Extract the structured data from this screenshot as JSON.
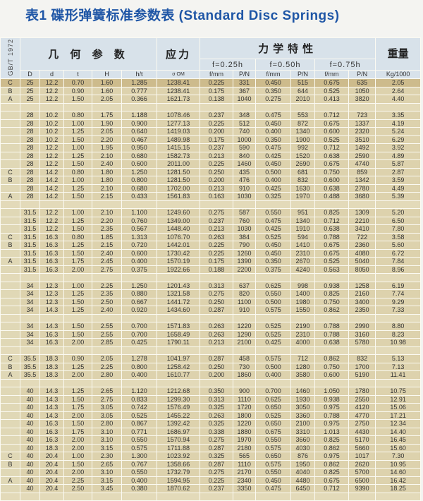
{
  "title": "表1  碟形弹簧标准参数表 (Standard Disc Springs)",
  "header": {
    "standard": "GB/T 1972",
    "geometry": "几 何 参 数",
    "stress": "应力",
    "mechanical": "力学特性",
    "weight": "重量",
    "f025": "f=0.25h",
    "f050": "f=0.50h",
    "f075": "f=0.75h",
    "columns": [
      "D",
      "d",
      "t",
      "H",
      "h/t",
      "σ OM",
      "f/mm",
      "P/N",
      "f/mm",
      "P/N",
      "f/mm",
      "P/N",
      "Kg/1000"
    ]
  },
  "rows": [
    [
      "C",
      "25",
      "12.2",
      "0.70",
      "1.60",
      "1.285",
      "1238.41",
      "0.225",
      "331",
      "0.450",
      "515",
      "0.675",
      "635",
      "2.05"
    ],
    [
      "B",
      "25",
      "12.2",
      "0.90",
      "1.60",
      "0.777",
      "1238.41",
      "0.175",
      "367",
      "0.350",
      "644",
      "0.525",
      "1050",
      "2.64"
    ],
    [
      "A",
      "25",
      "12.2",
      "1.50",
      "2.05",
      "0.366",
      "1621.73",
      "0.138",
      "1040",
      "0.275",
      "2010",
      "0.413",
      "3820",
      "4.40"
    ],
    null,
    [
      "",
      "28",
      "10.2",
      "0.80",
      "1.75",
      "1.188",
      "1078.46",
      "0.237",
      "348",
      "0.475",
      "553",
      "0.712",
      "723",
      "3.35"
    ],
    [
      "",
      "28",
      "10.2",
      "1.00",
      "1.90",
      "0.900",
      "1277.13",
      "0.225",
      "512",
      "0.450",
      "872",
      "0.675",
      "1337",
      "4.19"
    ],
    [
      "",
      "28",
      "10.2",
      "1.25",
      "2.05",
      "0.640",
      "1419.03",
      "0.200",
      "740",
      "0.400",
      "1340",
      "0.600",
      "2320",
      "5.24"
    ],
    [
      "",
      "28",
      "10.2",
      "1.50",
      "2.20",
      "0.467",
      "1489.98",
      "0.175",
      "1000",
      "0.350",
      "1900",
      "0.525",
      "3510",
      "6.29"
    ],
    [
      "",
      "28",
      "12.2",
      "1.00",
      "1.95",
      "0.950",
      "1415.15",
      "0.237",
      "590",
      "0.475",
      "992",
      "0.712",
      "1492",
      "3.92"
    ],
    [
      "",
      "28",
      "12.2",
      "1.25",
      "2.10",
      "0.680",
      "1582.73",
      "0.213",
      "840",
      "0.425",
      "1520",
      "0.638",
      "2590",
      "4.89"
    ],
    [
      "",
      "28",
      "12.2",
      "1.50",
      "2.40",
      "0.600",
      "2011.00",
      "0.225",
      "1460",
      "0.450",
      "2690",
      "0.675",
      "4740",
      "5.87"
    ],
    [
      "C",
      "28",
      "14.2",
      "0.80",
      "1.80",
      "1.250",
      "1281.50",
      "0.250",
      "435",
      "0.500",
      "681",
      "0.750",
      "859",
      "2.87"
    ],
    [
      "B",
      "28",
      "14.2",
      "1.00",
      "1.80",
      "0.800",
      "1281.50",
      "0.200",
      "476",
      "0.400",
      "832",
      "0.600",
      "1342",
      "3.59"
    ],
    [
      "",
      "28",
      "14.2",
      "1.25",
      "2.10",
      "0.680",
      "1702.00",
      "0.213",
      "910",
      "0.425",
      "1630",
      "0.638",
      "2780",
      "4.49"
    ],
    [
      "A",
      "28",
      "14.2",
      "1.50",
      "2.15",
      "0.433",
      "1561.83",
      "0.163",
      "1030",
      "0.325",
      "1970",
      "0.488",
      "3680",
      "5.39"
    ],
    null,
    [
      "",
      "31.5",
      "12.2",
      "1.00",
      "2.10",
      "1.100",
      "1249.60",
      "0.275",
      "587",
      "0.550",
      "951",
      "0.825",
      "1309",
      "5.20"
    ],
    [
      "",
      "31.5",
      "12.2",
      "1.25",
      "2.20",
      "0.760",
      "1349.00",
      "0.237",
      "760",
      "0.475",
      "1340",
      "0.712",
      "2210",
      "6.50"
    ],
    [
      "",
      "31.5",
      "12.2",
      "1.50",
      "2.35",
      "0.567",
      "1448.40",
      "0.213",
      "1030",
      "0.425",
      "1910",
      "0.638",
      "3410",
      "7.80"
    ],
    [
      "C",
      "31.5",
      "16.3",
      "0.80",
      "1.85",
      "1.313",
      "1076.70",
      "0.263",
      "384",
      "0.525",
      "594",
      "0.788",
      "722",
      "3.58"
    ],
    [
      "B",
      "31.5",
      "16.3",
      "1.25",
      "2.15",
      "0.720",
      "1442.01",
      "0.225",
      "790",
      "0.450",
      "1410",
      "0.675",
      "2360",
      "5.60"
    ],
    [
      "",
      "31.5",
      "16.3",
      "1.50",
      "2.40",
      "0.600",
      "1730.42",
      "0.225",
      "1260",
      "0.450",
      "2310",
      "0.675",
      "4080",
      "6.72"
    ],
    [
      "A",
      "31.5",
      "16.3",
      "1.75",
      "2.45",
      "0.400",
      "1570.19",
      "0.175",
      "1390",
      "0.350",
      "2670",
      "0.525",
      "5040",
      "7.84"
    ],
    [
      "",
      "31.5",
      "16.3",
      "2.00",
      "2.75",
      "0.375",
      "1922.66",
      "0.188",
      "2200",
      "0.375",
      "4240",
      "0.563",
      "8050",
      "8.96"
    ],
    null,
    [
      "",
      "34",
      "12.3",
      "1.00",
      "2.25",
      "1.250",
      "1201.43",
      "0.313",
      "637",
      "0.625",
      "998",
      "0.938",
      "1258",
      "6.19"
    ],
    [
      "",
      "34",
      "12.3",
      "1.25",
      "2.35",
      "0.880",
      "1321.58",
      "0.275",
      "820",
      "0.550",
      "1400",
      "0.825",
      "2160",
      "7.74"
    ],
    [
      "",
      "34",
      "12.3",
      "1.50",
      "2.50",
      "0.667",
      "1441.72",
      "0.250",
      "1100",
      "0.500",
      "1980",
      "0.750",
      "3400",
      "9.29"
    ],
    [
      "",
      "34",
      "14.3",
      "1.25",
      "2.40",
      "0.920",
      "1434.60",
      "0.287",
      "910",
      "0.575",
      "1550",
      "0.862",
      "2350",
      "7.33"
    ],
    null,
    [
      "",
      "34",
      "14.3",
      "1.50",
      "2.55",
      "0.700",
      "1571.83",
      "0.263",
      "1220",
      "0.525",
      "2190",
      "0.788",
      "2990",
      "8.80"
    ],
    [
      "",
      "34",
      "16.3",
      "1.50",
      "2.55",
      "0.700",
      "1658.49",
      "0.263",
      "1290",
      "0.525",
      "2310",
      "0.788",
      "3160",
      "8.23"
    ],
    [
      "",
      "34",
      "16.3",
      "2.00",
      "2.85",
      "0.425",
      "1790.11",
      "0.213",
      "2100",
      "0.425",
      "4000",
      "0.638",
      "5780",
      "10.98"
    ],
    null,
    [
      "C",
      "35.5",
      "18.3",
      "0.90",
      "2.05",
      "1.278",
      "1041.97",
      "0.287",
      "458",
      "0.575",
      "712",
      "0.862",
      "832",
      "5.13"
    ],
    [
      "B",
      "35.5",
      "18.3",
      "1.25",
      "2.25",
      "0.800",
      "1258.42",
      "0.250",
      "730",
      "0.500",
      "1280",
      "0.750",
      "1700",
      "7.13"
    ],
    [
      "A",
      "35.5",
      "18.3",
      "2.00",
      "2.80",
      "0.400",
      "1610.77",
      "0.200",
      "1860",
      "0.400",
      "3580",
      "0.600",
      "5190",
      "11.41"
    ],
    null,
    [
      "",
      "40",
      "14.3",
      "1.25",
      "2.65",
      "1.120",
      "1212.68",
      "0.350",
      "900",
      "0.700",
      "1460",
      "1.050",
      "1780",
      "10.75"
    ],
    [
      "",
      "40",
      "14.3",
      "1.50",
      "2.75",
      "0.833",
      "1299.30",
      "0.313",
      "1110",
      "0.625",
      "1930",
      "0.938",
      "2550",
      "12.91"
    ],
    [
      "",
      "40",
      "14.3",
      "1.75",
      "3.05",
      "0.742",
      "1576.49",
      "0.325",
      "1720",
      "0.650",
      "3050",
      "0.975",
      "4120",
      "15.06"
    ],
    [
      "",
      "40",
      "14.3",
      "2.00",
      "3.05",
      "0.525",
      "1455.22",
      "0.263",
      "1800",
      "0.525",
      "3360",
      "0.788",
      "4770",
      "17.21"
    ],
    [
      "",
      "40",
      "16.3",
      "1.50",
      "2.80",
      "0.867",
      "1392.42",
      "0.325",
      "1220",
      "0.650",
      "2100",
      "0.975",
      "2750",
      "12.34"
    ],
    [
      "",
      "40",
      "16.3",
      "1.75",
      "3.10",
      "0.771",
      "1686.97",
      "0.338",
      "1880",
      "0.675",
      "3310",
      "1.013",
      "4430",
      "14.40"
    ],
    [
      "",
      "40",
      "16.3",
      "2.00",
      "3.10",
      "0.550",
      "1570.94",
      "0.275",
      "1970",
      "0.550",
      "3660",
      "0.825",
      "5170",
      "16.45"
    ],
    [
      "",
      "40",
      "18.3",
      "2.00",
      "3.15",
      "0.575",
      "1711.88",
      "0.287",
      "2180",
      "0.575",
      "4030",
      "0.862",
      "5660",
      "15.60"
    ],
    [
      "C",
      "40",
      "20.4",
      "1.00",
      "2.30",
      "1.300",
      "1023.92",
      "0.325",
      "565",
      "0.650",
      "876",
      "0.975",
      "1017",
      "7.30"
    ],
    [
      "B",
      "40",
      "20.4",
      "1.50",
      "2.65",
      "0.767",
      "1358.66",
      "0.287",
      "1110",
      "0.575",
      "1950",
      "0.862",
      "2620",
      "10.95"
    ],
    [
      "",
      "40",
      "20.4",
      "2.00",
      "3.10",
      "0.550",
      "1732.79",
      "0.275",
      "2170",
      "0.550",
      "4040",
      "0.825",
      "5700",
      "14.60"
    ],
    [
      "A",
      "40",
      "20.4",
      "2.25",
      "3.15",
      "0.400",
      "1594.95",
      "0.225",
      "2340",
      "0.450",
      "4480",
      "0.675",
      "6500",
      "16.42"
    ],
    [
      "",
      "40",
      "20.4",
      "2.50",
      "3.45",
      "0.380",
      "1870.62",
      "0.237",
      "3350",
      "0.475",
      "6450",
      "0.712",
      "9390",
      "18.25"
    ],
    null
  ]
}
